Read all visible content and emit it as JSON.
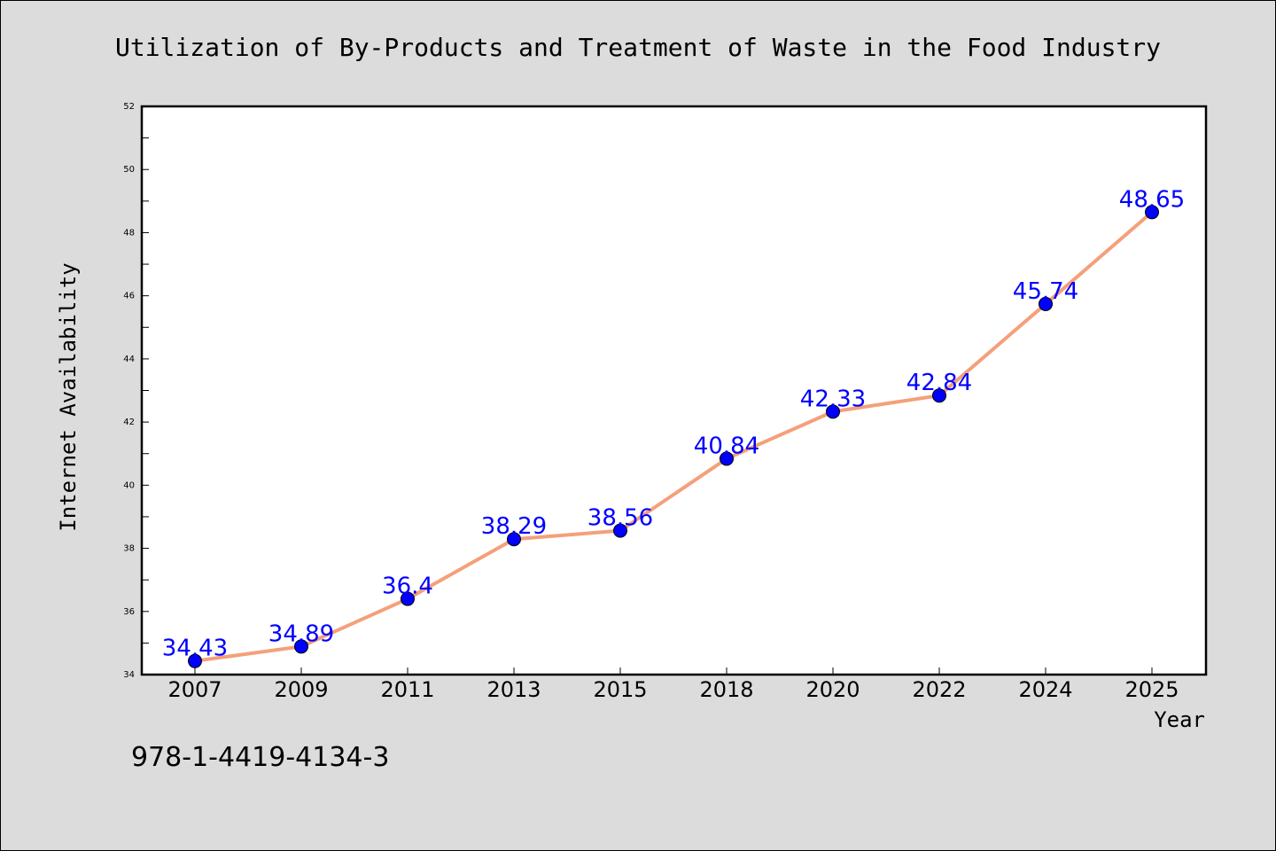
{
  "chart_data": {
    "type": "line",
    "title": "Utilization of By-Products and Treatment of Waste in the Food Industry",
    "xlabel": "Year",
    "ylabel": "Internet Availability",
    "categories": [
      "2007",
      "2009",
      "2011",
      "2013",
      "2015",
      "2018",
      "2020",
      "2022",
      "2024",
      "2025"
    ],
    "series": [
      {
        "values": [
          34.43,
          34.89,
          36.4,
          38.29,
          38.56,
          40.84,
          42.33,
          42.84,
          45.74,
          48.65
        ],
        "labels": [
          "34.43",
          "34.89",
          "36.4",
          "38.29",
          "38.56",
          "40.84",
          "42.33",
          "42.84",
          "45.74",
          "48.65"
        ]
      }
    ],
    "ylim": [
      34,
      52
    ],
    "yticks": [
      "34",
      "36",
      "38",
      "40",
      "42",
      "44",
      "46",
      "48",
      "50",
      "52"
    ],
    "grid": false,
    "line_color": "#f4a07a",
    "marker_color": "#0000ff",
    "label_color": "#0000ff",
    "background_color": "#dcdcdc",
    "plot_background_color": "#ffffff"
  },
  "footer": {
    "isbn": "978-1-4419-4134-3"
  }
}
